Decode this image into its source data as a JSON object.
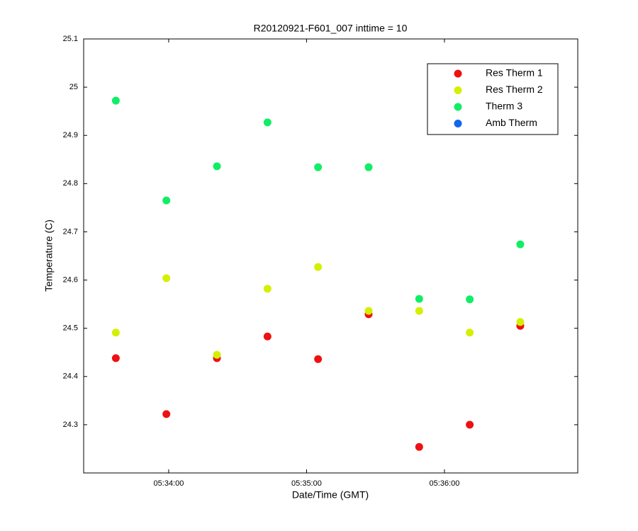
{
  "chart_data": {
    "type": "scatter",
    "title": "R20120921-F601_007 inttime = 10",
    "x_label": "Date/Time (GMT)",
    "y_label": "Temperature (C)",
    "x": [
      "05:33:37",
      "05:33:59",
      "05:34:21",
      "05:34:43",
      "05:35:05",
      "05:35:27",
      "05:35:49",
      "05:36:11",
      "05:36:33"
    ],
    "xlim": [
      "05:33:23",
      "05:36:58"
    ],
    "xticks": [
      "05:34:00",
      "05:35:00",
      "05:36:00"
    ],
    "ylim": [
      24.2,
      25.1
    ],
    "yticks": [
      24.3,
      24.4,
      24.5,
      24.6,
      24.7,
      24.8,
      24.9,
      25,
      25.1
    ],
    "legend": "upper right",
    "series": [
      {
        "name": "Res Therm 1",
        "color": "#ee1111",
        "values": [
          24.438,
          24.322,
          24.438,
          24.483,
          24.436,
          24.529,
          24.254,
          24.3,
          24.505
        ]
      },
      {
        "name": "Res Therm 2",
        "color": "#d4f000",
        "values": [
          24.491,
          24.604,
          24.445,
          24.582,
          24.627,
          24.536,
          24.536,
          24.491,
          24.513
        ]
      },
      {
        "name": "Therm 3",
        "color": "#11ee66",
        "values": [
          24.972,
          24.765,
          24.836,
          24.927,
          24.834,
          24.834,
          24.561,
          24.56,
          24.674
        ]
      },
      {
        "name": "Amb Therm",
        "color": "#1166ee",
        "values": [
          null,
          null,
          null,
          null,
          null,
          null,
          null,
          null,
          null
        ]
      }
    ]
  }
}
